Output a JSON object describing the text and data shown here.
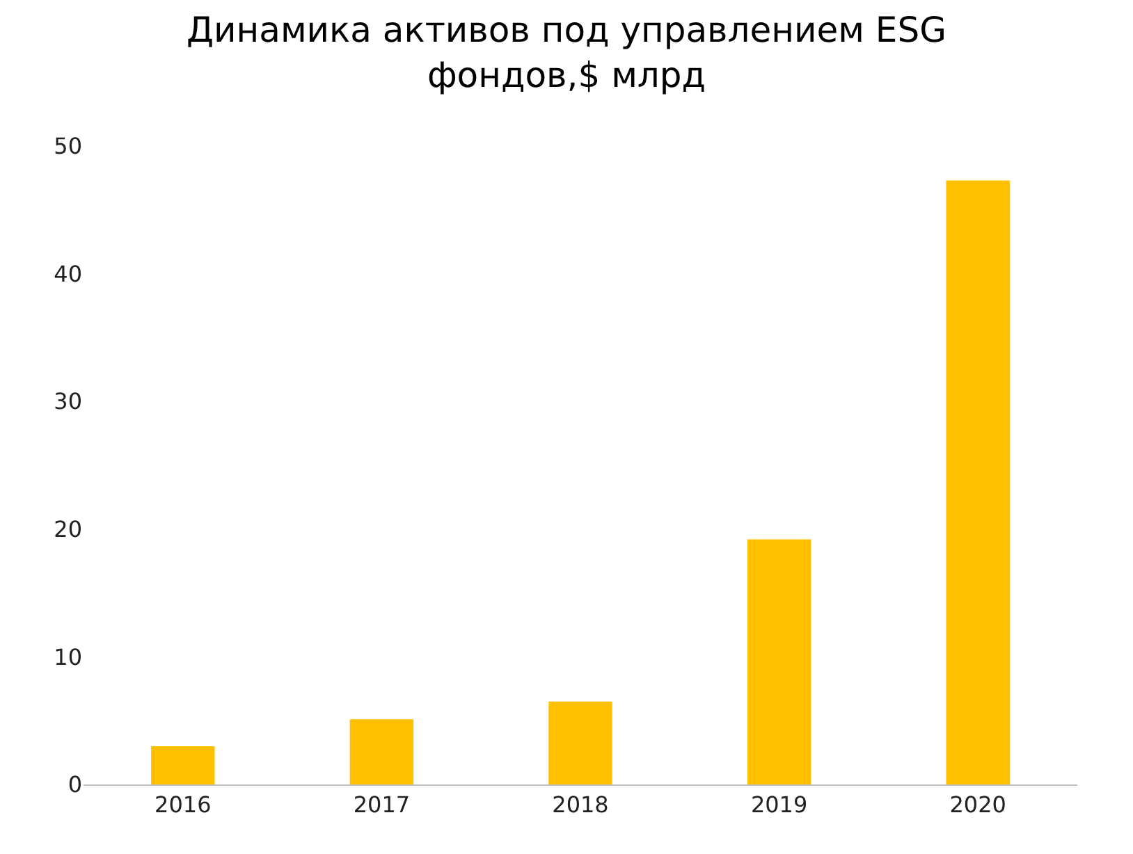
{
  "chart_data": {
    "type": "bar",
    "title": "Динамика активов под управлением ESG\nфондов,$ млрд",
    "categories": [
      "2016",
      "2017",
      "2018",
      "2019",
      "2020"
    ],
    "values": [
      3.0,
      5.1,
      6.5,
      19.2,
      47.3
    ],
    "color": "#ffc000",
    "ylim": [
      0,
      50
    ],
    "yticks": [
      0,
      10,
      20,
      30,
      40,
      50
    ],
    "grid": false
  }
}
